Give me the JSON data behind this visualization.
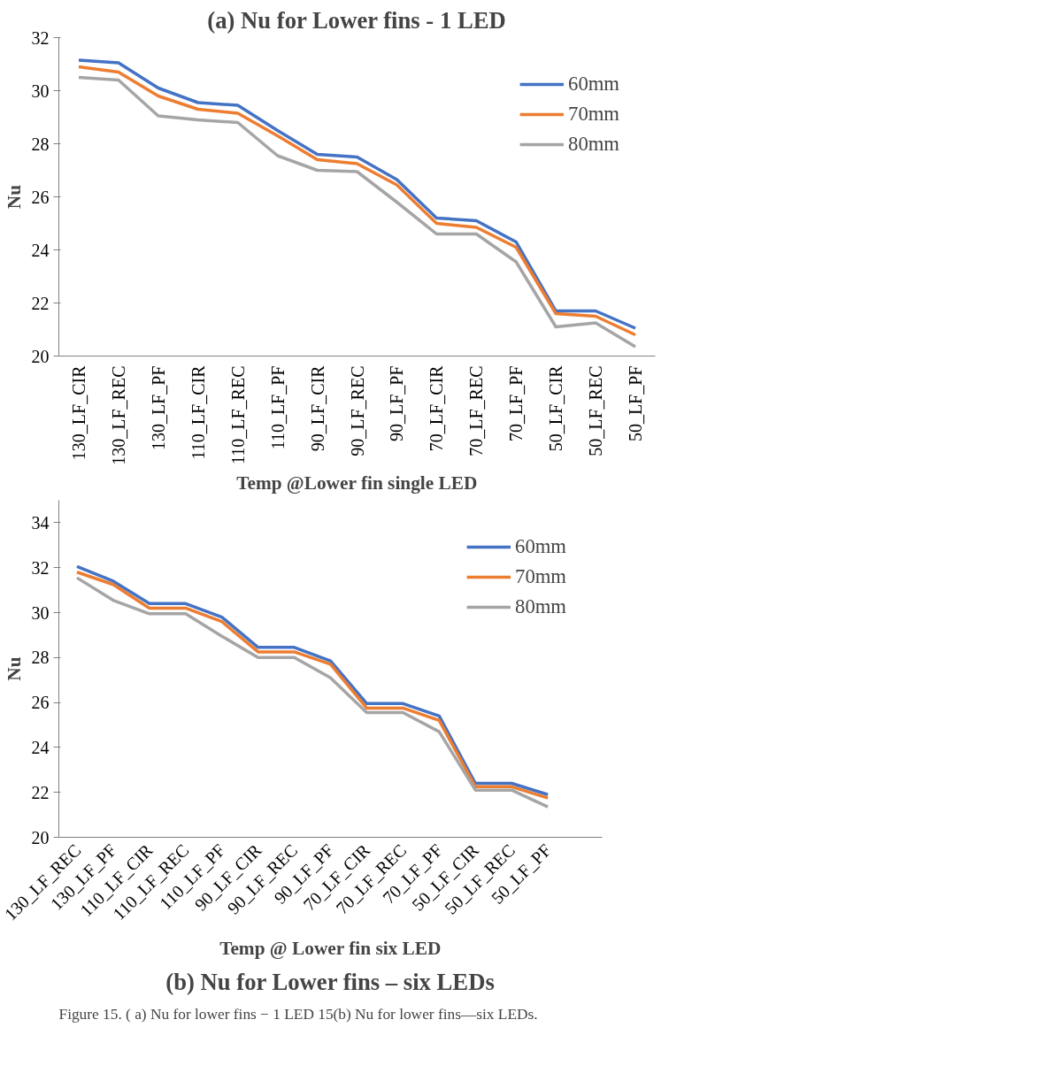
{
  "chart_data": [
    {
      "type": "line",
      "title": "(a) Nu for Lower fins - 1 LED",
      "xlabel": "Temp @Lower fin single LED",
      "ylabel": "Nu",
      "categories": [
        "130_LF_CIR",
        "130_LF_REC",
        "130_LF_PF",
        "110_LF_CIR",
        "110_LF_REC",
        "110_LF_PF",
        "90_LF_CIR",
        "90_LF_REC",
        "90_LF_PF",
        "70_LF_CIR",
        "70_LF_REC",
        "70_LF_PF",
        "50_LF_CIR",
        "50_LF_REC",
        "50_LF_PF"
      ],
      "series": [
        {
          "name": "60mm",
          "color": "#4472c4",
          "values": [
            31.15,
            31.05,
            30.1,
            29.55,
            29.45,
            28.5,
            27.6,
            27.5,
            26.65,
            25.2,
            25.1,
            24.3,
            21.7,
            21.7,
            21.05
          ]
        },
        {
          "name": "70mm",
          "color": "#ed7d31",
          "values": [
            30.9,
            30.7,
            29.8,
            29.3,
            29.15,
            28.3,
            27.4,
            27.25,
            26.45,
            25.0,
            24.85,
            24.1,
            21.6,
            21.5,
            20.8
          ]
        },
        {
          "name": "80mm",
          "color": "#a5a5a5",
          "values": [
            30.5,
            30.4,
            29.05,
            28.9,
            28.8,
            27.55,
            27.0,
            26.95,
            25.8,
            24.6,
            24.6,
            23.55,
            21.1,
            21.25,
            20.35
          ]
        }
      ],
      "ylim": [
        20,
        32
      ],
      "yticks": [
        20,
        22,
        24,
        26,
        28,
        30,
        32
      ],
      "grid": false,
      "legend": "top right",
      "marker": "none",
      "line_style": "solid"
    },
    {
      "type": "line",
      "title": "(b) Nu for Lower fins – six LEDs",
      "xlabel": "Temp @ Lower fin six LED",
      "ylabel": "Nu",
      "categories": [
        "130_LF_REC",
        "130_LF_PF",
        "110_LF_CIR",
        "110_LF_REC",
        "110_LF_PF",
        "90_LF_CIR",
        "90_LF_REC",
        "90_LF_PF",
        "70_LF_CIR",
        "70_LF_REC",
        "70_LF_PF",
        "50_LF_CIR",
        "50_LF_REC",
        "50_LF_PF",
        null
      ],
      "series": [
        {
          "name": "60mm",
          "color": "#4472c4",
          "values": [
            32.05,
            31.4,
            30.4,
            30.4,
            29.8,
            28.45,
            28.45,
            27.85,
            25.95,
            25.95,
            25.4,
            22.4,
            22.4,
            21.9,
            null
          ]
        },
        {
          "name": "70mm",
          "color": "#ed7d31",
          "values": [
            31.8,
            31.25,
            30.2,
            30.2,
            29.6,
            28.25,
            28.25,
            27.7,
            25.75,
            25.75,
            25.2,
            22.25,
            22.25,
            21.75,
            null
          ]
        },
        {
          "name": "80mm",
          "color": "#a5a5a5",
          "values": [
            31.55,
            30.55,
            29.95,
            29.95,
            28.95,
            28.0,
            28.0,
            27.1,
            25.55,
            25.55,
            24.7,
            22.1,
            22.1,
            21.35,
            null
          ]
        }
      ],
      "ylim": [
        20,
        35
      ],
      "yticks": [
        20,
        22,
        24,
        26,
        28,
        30,
        32,
        34
      ],
      "grid": false,
      "legend": "top right",
      "marker": "none",
      "line_style": "solid",
      "annotations": [
        "Figure 15. ( a) Nu for lower fins − 1 LED 15(b) Nu for lower fins—six LEDs."
      ]
    }
  ]
}
